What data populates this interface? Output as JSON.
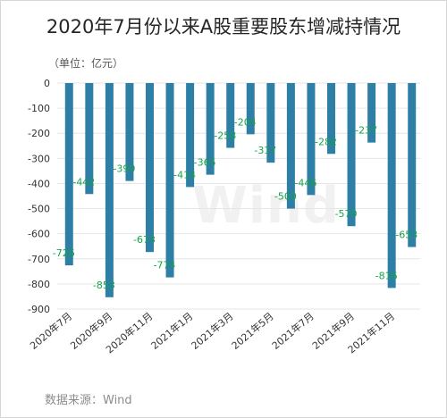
{
  "chart_data": {
    "type": "bar",
    "title": "2020年7月份以来A股重要股东增减持情况",
    "unit_label": "（单位：亿元）",
    "source": "数据来源：Wind",
    "watermark": "Wind",
    "categories": [
      "2020年7月",
      "2020年8月",
      "2020年9月",
      "2020年10月",
      "2020年11月",
      "2020年12月",
      "2021年1月",
      "2021年2月",
      "2021年3月",
      "2021年4月",
      "2021年5月",
      "2021年6月",
      "2021年7月",
      "2021年8月",
      "2021年9月",
      "2021年10月",
      "2021年11月",
      "2021年12月"
    ],
    "x_tick_labels": [
      "2020年7月",
      "",
      "2020年9月",
      "",
      "2020年11月",
      "",
      "2021年1月",
      "",
      "2021年3月",
      "",
      "2021年5月",
      "",
      "2021年7月",
      "",
      "2021年9月",
      "",
      "2021年11月",
      ""
    ],
    "values": [
      -726,
      -442,
      -853,
      -390,
      -673,
      -774,
      -414,
      -365,
      -258,
      -204,
      -317,
      -500,
      -446,
      -282,
      -570,
      -237,
      -816,
      -653
    ],
    "data_labels": [
      "-726",
      "-442",
      "-853",
      "-390",
      "-673",
      "-774",
      "-414",
      "-365",
      "-258",
      "-204",
      "-317",
      "-500",
      "-446",
      "-282",
      "-570",
      "-237",
      "-816",
      "-653"
    ],
    "y_ticks": [
      0,
      -100,
      -200,
      -300,
      -400,
      -500,
      -600,
      -700,
      -800,
      -900
    ],
    "ylim": [
      -900,
      0
    ],
    "grid": true,
    "colors": {
      "bar": "#2d7fa6",
      "label": "#17a34a",
      "grid": "#e6e6e6",
      "axis_text": "#333333"
    }
  }
}
